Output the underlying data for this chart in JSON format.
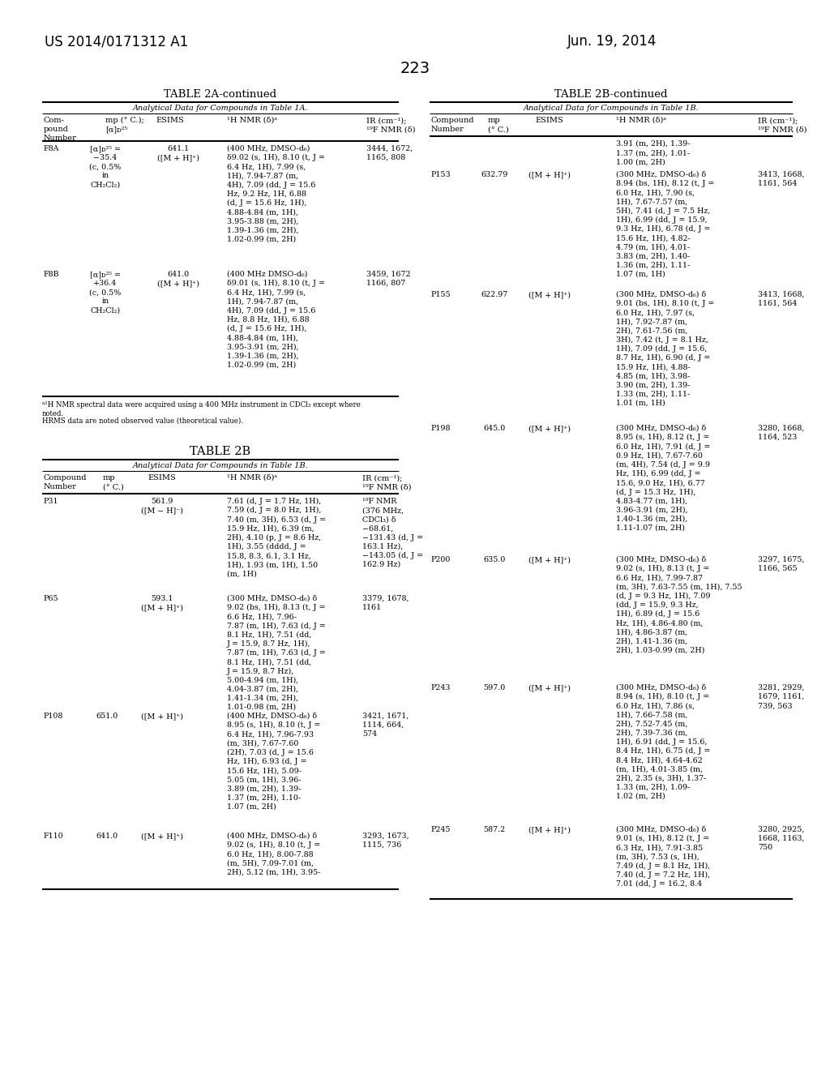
{
  "page_number": "223",
  "patent_number": "US 2014/0171312 A1",
  "patent_date": "Jun. 19, 2014",
  "background_color": "#ffffff",
  "text_color": "#000000"
}
